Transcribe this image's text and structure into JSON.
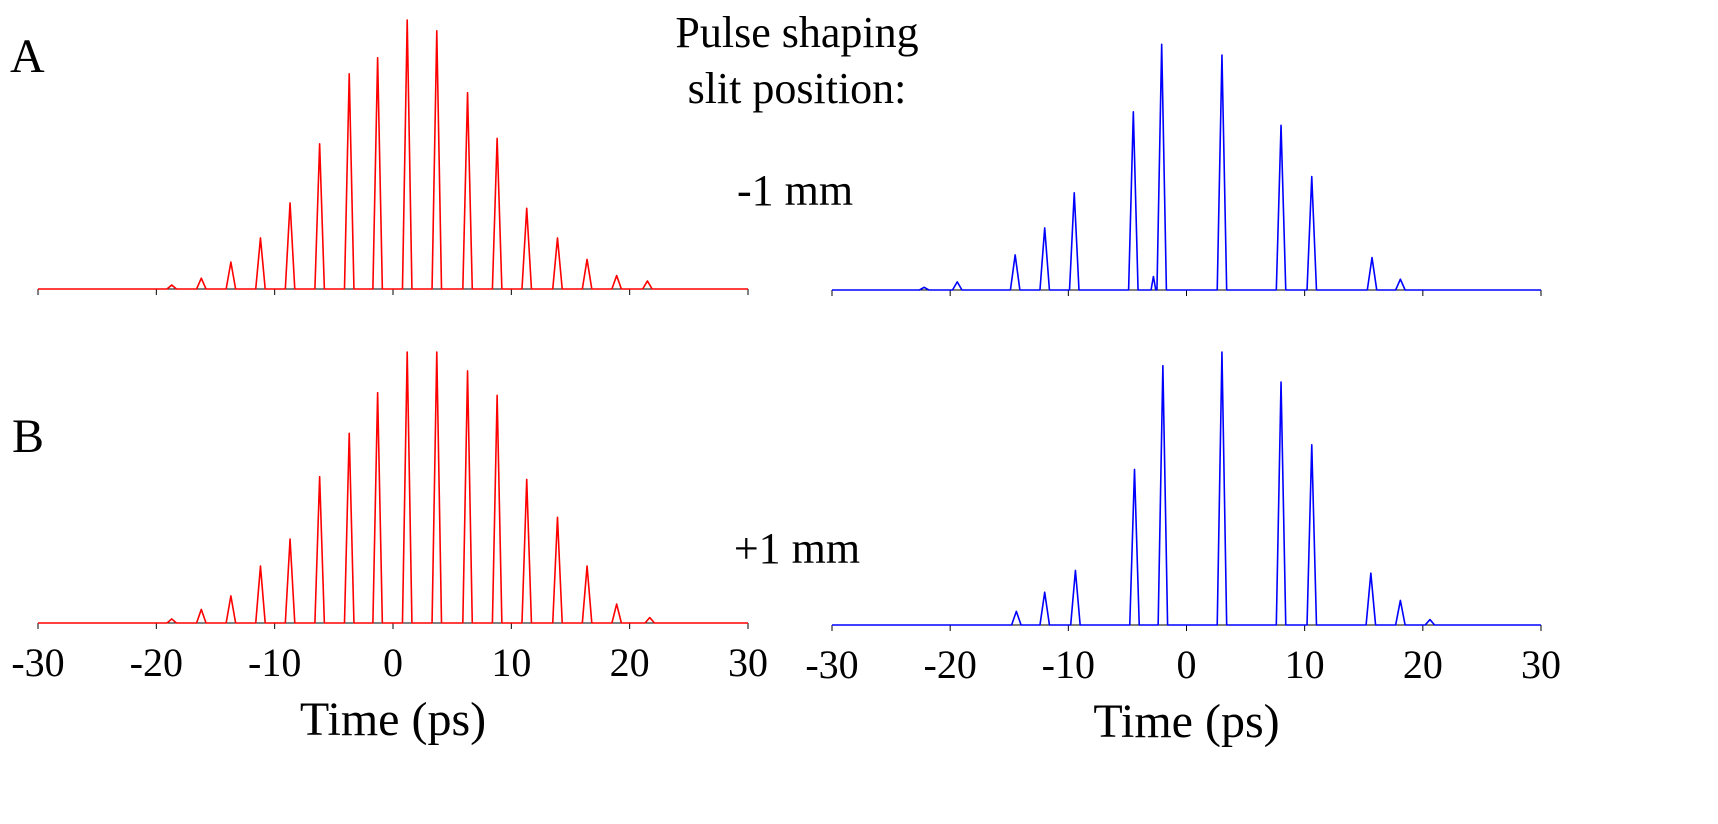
{
  "annotations": {
    "panel_a": "A",
    "panel_b": "B",
    "heading_line1": "Pulse shaping",
    "heading_line2": "slit position:",
    "top_setting": "-1 mm",
    "bottom_setting": "+1 mm"
  },
  "chart_data": [
    {
      "type": "line",
      "color": "#ff0000",
      "xlim": [
        -30,
        30
      ],
      "ylim": [
        0,
        1
      ],
      "xticks": [
        -30,
        -20,
        -10,
        0,
        10,
        20,
        30
      ],
      "show_tick_labels": false,
      "x": [
        -30,
        -19.1,
        -18.7,
        -18.3,
        -16.6,
        -16.2,
        -15.8,
        -14.1,
        -13.7,
        -13.3,
        -11.6,
        -11.2,
        -10.8,
        -9.1,
        -8.7,
        -8.3,
        -6.6,
        -6.2,
        -5.8,
        -4.1,
        -3.7,
        -3.3,
        -1.7,
        -1.3,
        -0.9,
        0.8,
        1.2,
        1.6,
        3.3,
        3.7,
        4.1,
        5.9,
        6.3,
        6.7,
        8.4,
        8.8,
        9.2,
        10.9,
        11.3,
        11.7,
        13.5,
        13.9,
        14.3,
        16,
        16.4,
        16.8,
        18.5,
        18.9,
        19.3,
        21.1,
        21.5,
        21.9,
        30
      ],
      "values": [
        0,
        0,
        0.015,
        0,
        0,
        0.04,
        0,
        0,
        0.1,
        0,
        0,
        0.19,
        0,
        0,
        0.32,
        0,
        0,
        0.54,
        0,
        0,
        0.8,
        0,
        0,
        0.86,
        0,
        0,
        1.0,
        0,
        0,
        0.96,
        0,
        0,
        0.73,
        0,
        0,
        0.56,
        0,
        0,
        0.3,
        0,
        0,
        0.19,
        0,
        0,
        0.11,
        0,
        0,
        0.05,
        0,
        0,
        0.03,
        0,
        0
      ]
    },
    {
      "type": "line",
      "color": "#0000ff",
      "xlim": [
        -30,
        30
      ],
      "ylim": [
        0,
        1
      ],
      "xticks": [
        -30,
        -20,
        -10,
        0,
        10,
        20,
        30
      ],
      "show_tick_labels": false,
      "x": [
        -30,
        -22.6,
        -22.2,
        -21.8,
        -19.8,
        -19.4,
        -19.0,
        -14.9,
        -14.5,
        -14.1,
        -12.4,
        -12.0,
        -11.6,
        -9.9,
        -9.5,
        -9.1,
        -4.9,
        -4.5,
        -4.1,
        -3.0,
        -2.8,
        -2.6,
        -2.5,
        -2.1,
        -1.7,
        2.6,
        3.0,
        3.4,
        7.6,
        8.0,
        8.4,
        10.2,
        10.6,
        11.0,
        15.3,
        15.7,
        16.1,
        17.7,
        18.1,
        18.5,
        30
      ],
      "values": [
        0,
        0,
        0.01,
        0,
        0,
        0.03,
        0,
        0,
        0.13,
        0,
        0,
        0.23,
        0,
        0,
        0.36,
        0,
        0,
        0.66,
        0,
        0,
        0.05,
        0,
        0,
        0.91,
        0,
        0,
        0.87,
        0,
        0,
        0.61,
        0,
        0,
        0.42,
        0,
        0,
        0.12,
        0,
        0,
        0.04,
        0,
        0
      ]
    },
    {
      "type": "line",
      "color": "#ff0000",
      "xlim": [
        -30,
        30
      ],
      "ylim": [
        0,
        1
      ],
      "xticks": [
        -30,
        -20,
        -10,
        0,
        10,
        20,
        30
      ],
      "show_tick_labels": true,
      "xlabel": "Time (ps)",
      "x": [
        -30,
        -19.1,
        -18.7,
        -18.3,
        -16.6,
        -16.2,
        -15.8,
        -14.1,
        -13.7,
        -13.3,
        -11.6,
        -11.2,
        -10.8,
        -9.1,
        -8.7,
        -8.3,
        -6.6,
        -6.2,
        -5.8,
        -4.1,
        -3.7,
        -3.3,
        -1.7,
        -1.3,
        -0.9,
        0.8,
        1.2,
        1.6,
        3.3,
        3.7,
        4.1,
        5.9,
        6.3,
        6.7,
        8.4,
        8.8,
        9.2,
        10.9,
        11.3,
        11.7,
        13.5,
        13.9,
        14.3,
        16,
        16.4,
        16.8,
        18.5,
        18.9,
        19.3,
        21.3,
        21.7,
        22.1,
        30
      ],
      "values": [
        0,
        0,
        0.015,
        0,
        0,
        0.05,
        0,
        0,
        0.1,
        0,
        0,
        0.21,
        0,
        0,
        0.31,
        0,
        0,
        0.54,
        0,
        0,
        0.7,
        0,
        0,
        0.85,
        0,
        0,
        1.0,
        0,
        0,
        1.0,
        0,
        0,
        0.93,
        0,
        0,
        0.84,
        0,
        0,
        0.53,
        0,
        0,
        0.39,
        0,
        0,
        0.21,
        0,
        0,
        0.07,
        0,
        0,
        0.02,
        0,
        0
      ]
    },
    {
      "type": "line",
      "color": "#0000ff",
      "xlim": [
        -30,
        30
      ],
      "ylim": [
        0,
        1
      ],
      "xticks": [
        -30,
        -20,
        -10,
        0,
        10,
        20,
        30
      ],
      "show_tick_labels": true,
      "xlabel": "Time (ps)",
      "x": [
        -30,
        -14.8,
        -14.4,
        -14.0,
        -12.4,
        -12.0,
        -11.6,
        -9.8,
        -9.4,
        -9.0,
        -4.8,
        -4.4,
        -4.0,
        -2.4,
        -2.0,
        -1.6,
        2.6,
        3.0,
        3.4,
        7.6,
        8.0,
        8.4,
        10.2,
        10.6,
        11.0,
        15.2,
        15.6,
        16.0,
        17.7,
        18.1,
        18.5,
        20.2,
        20.6,
        21.0,
        30
      ],
      "values": [
        0,
        0,
        0.05,
        0,
        0,
        0.12,
        0,
        0,
        0.2,
        0,
        0,
        0.57,
        0,
        0,
        0.95,
        0,
        0,
        1.0,
        0,
        0,
        0.89,
        0,
        0,
        0.66,
        0,
        0,
        0.19,
        0,
        0,
        0.09,
        0,
        0,
        0.02,
        0,
        0
      ]
    }
  ]
}
